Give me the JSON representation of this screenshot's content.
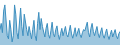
{
  "chart_data": {
    "type": "area",
    "categories": [
      null,
      null,
      null,
      null,
      null,
      null,
      null,
      null,
      null,
      null,
      null,
      null,
      null,
      null,
      null,
      null,
      null,
      null,
      null,
      null,
      null,
      null,
      null,
      null,
      null,
      null,
      null,
      null,
      null,
      null,
      null,
      null,
      null,
      null,
      null,
      null,
      null,
      null,
      null,
      null,
      null,
      null,
      null,
      null,
      null,
      null,
      null,
      null,
      null,
      null,
      null,
      null,
      null,
      null,
      null,
      null,
      null,
      null,
      null,
      null,
      null,
      null,
      null,
      null,
      null,
      null,
      null,
      null,
      null,
      null,
      null,
      null,
      null,
      null,
      null,
      null,
      null,
      null,
      null,
      null,
      null,
      null,
      null,
      null,
      null,
      null,
      null,
      null,
      null,
      null,
      null,
      null,
      null,
      null,
      null,
      null,
      null,
      null,
      null,
      null
    ],
    "values": [
      0.6,
      0.7,
      0.55,
      0.9,
      1.0,
      0.65,
      0.5,
      0.45,
      0.75,
      0.6,
      0.4,
      0.5,
      1.0,
      0.85,
      0.55,
      0.45,
      0.7,
      0.95,
      0.65,
      0.5,
      0.85,
      0.7,
      0.6,
      0.5,
      0.65,
      0.55,
      0.45,
      0.6,
      0.75,
      0.5,
      0.42,
      0.7,
      0.88,
      0.6,
      0.78,
      0.65,
      0.55,
      0.48,
      0.62,
      0.7,
      0.52,
      0.46,
      0.58,
      0.72,
      0.54,
      0.48,
      0.6,
      0.66,
      0.52,
      0.44,
      0.54,
      0.62,
      0.5,
      0.56,
      0.65,
      0.52,
      0.48,
      0.57,
      0.67,
      0.53,
      0.46,
      0.54,
      0.63,
      0.49,
      0.57,
      0.62,
      0.52,
      0.47,
      0.55,
      0.6,
      0.58,
      0.64,
      0.72,
      0.55,
      0.48,
      0.62,
      0.7,
      0.57,
      0.5,
      0.58,
      0.65,
      0.53,
      0.47,
      0.56,
      0.63,
      0.51,
      0.46,
      0.54,
      0.61,
      0.5,
      0.44,
      0.52,
      0.59,
      0.48,
      0.55,
      0.6,
      0.5,
      0.45,
      0.53,
      0.57
    ],
    "color": "#3d8fbf",
    "ylim": [
      0.35,
      1.08
    ],
    "grid": false,
    "tick_labels": false
  }
}
